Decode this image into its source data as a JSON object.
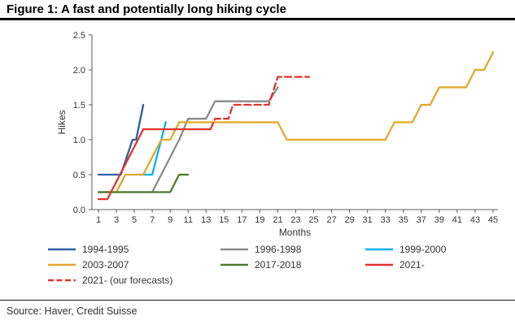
{
  "header": {
    "title": "Figure 1: A fast and potentially long hiking cycle"
  },
  "footer": {
    "source": "Source: Haver, Credit Suisse"
  },
  "chart_data": {
    "type": "line",
    "title": "Figure 1: A fast and potentially long hiking cycle",
    "xlabel": "Months",
    "ylabel": "Hikes",
    "xlim": [
      1,
      45
    ],
    "ylim": [
      0,
      2.5
    ],
    "xticks": [
      1,
      3,
      5,
      7,
      9,
      11,
      13,
      15,
      17,
      19,
      21,
      23,
      25,
      27,
      29,
      31,
      33,
      35,
      37,
      39,
      41,
      43,
      45
    ],
    "yticks": [
      0,
      0.5,
      1.0,
      1.5,
      2.0,
      2.5
    ],
    "grid": false,
    "legend_position": "bottom",
    "axis_color": "#595959",
    "label_color": "#333333",
    "series": [
      {
        "name": "1994-1995",
        "color": "#2e5fa3",
        "style": "solid",
        "points": [
          [
            1,
            0.5
          ],
          [
            3.5,
            0.5
          ],
          [
            4.8,
            1.0
          ],
          [
            5.2,
            1.0
          ],
          [
            6,
            1.5
          ]
        ]
      },
      {
        "name": "1996-1998",
        "color": "#8a8a8a",
        "style": "solid",
        "points": [
          [
            1,
            0.25
          ],
          [
            7,
            0.25
          ],
          [
            8,
            0.5
          ],
          [
            9,
            0.75
          ],
          [
            10,
            1.0
          ],
          [
            11,
            1.3
          ],
          [
            13,
            1.3
          ],
          [
            14,
            1.55
          ],
          [
            20,
            1.55
          ],
          [
            21,
            1.75
          ]
        ]
      },
      {
        "name": "1999-2000",
        "color": "#00b0f0",
        "style": "solid",
        "points": [
          [
            5.5,
            0.5
          ],
          [
            7,
            0.5
          ],
          [
            8.5,
            1.25
          ]
        ]
      },
      {
        "name": "2003-2007",
        "color": "#dfa828",
        "style": "solid",
        "points": [
          [
            1,
            0.25
          ],
          [
            3,
            0.25
          ],
          [
            4,
            0.5
          ],
          [
            6,
            0.5
          ],
          [
            7,
            0.75
          ],
          [
            8,
            1.0
          ],
          [
            9,
            1.0
          ],
          [
            10,
            1.25
          ],
          [
            21,
            1.25
          ],
          [
            22,
            1.0
          ],
          [
            33,
            1.0
          ],
          [
            34,
            1.25
          ],
          [
            36,
            1.25
          ],
          [
            37,
            1.5
          ],
          [
            38,
            1.5
          ],
          [
            39,
            1.75
          ],
          [
            42,
            1.75
          ],
          [
            43,
            2.0
          ],
          [
            44,
            2.0
          ],
          [
            45,
            2.25
          ]
        ]
      },
      {
        "name": "2017-2018",
        "color": "#4f7b2f",
        "style": "solid",
        "points": [
          [
            1,
            0.25
          ],
          [
            9,
            0.25
          ],
          [
            10,
            0.5
          ],
          [
            11,
            0.5
          ]
        ]
      },
      {
        "name": "2021-",
        "color": "#e0342b",
        "style": "solid",
        "points": [
          [
            1,
            0.15
          ],
          [
            2,
            0.15
          ],
          [
            3,
            0.4
          ],
          [
            4,
            0.65
          ],
          [
            5,
            0.9
          ],
          [
            6,
            1.15
          ],
          [
            13.5,
            1.15
          ]
        ]
      },
      {
        "name": "2021- (our forecasts)",
        "color": "#e0342b",
        "style": "dashed",
        "points": [
          [
            13.5,
            1.15
          ],
          [
            14,
            1.3
          ],
          [
            15.5,
            1.3
          ],
          [
            16,
            1.5
          ],
          [
            20,
            1.5
          ],
          [
            21,
            1.9
          ],
          [
            24.5,
            1.9
          ]
        ]
      }
    ]
  }
}
